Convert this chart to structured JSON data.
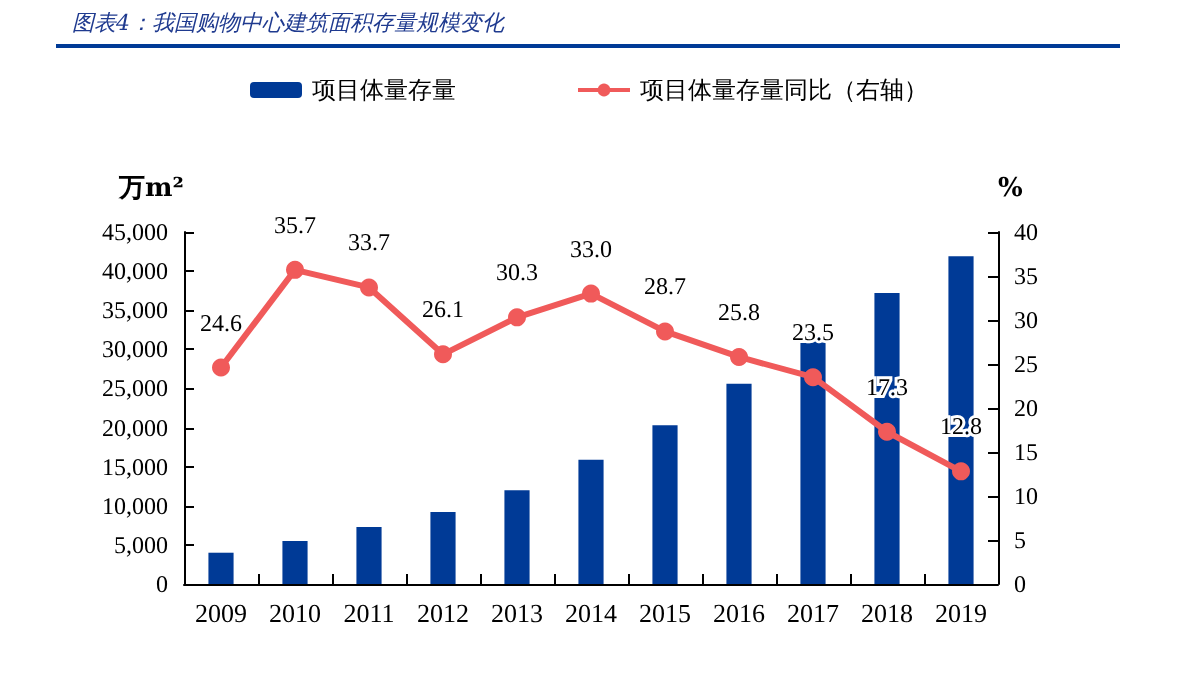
{
  "chart_data": {
    "type": "bar",
    "title": "图表4：我国购物中心建筑面积存量规模变化",
    "ylabel": "万m²",
    "y2label": "%",
    "categories": [
      "2009",
      "2010",
      "2011",
      "2012",
      "2013",
      "2014",
      "2015",
      "2016",
      "2017",
      "2018",
      "2019"
    ],
    "series": [
      {
        "name": "项目体量存量",
        "color": "#003a96",
        "values": [
          4000,
          5500,
          7300,
          9200,
          12000,
          15900,
          20300,
          25600,
          31700,
          37200,
          41900
        ]
      },
      {
        "name": "项目体量存量同比（右轴）",
        "type": "line",
        "axis": "y2",
        "color": "#f05a5a",
        "marker": "circle",
        "data_labels": true,
        "values": [
          24.6,
          35.7,
          33.7,
          26.1,
          30.3,
          33.0,
          28.7,
          25.8,
          23.5,
          17.3,
          12.8
        ],
        "value_labels": [
          "24.6",
          "35.7",
          "33.7",
          "26.1",
          "30.3",
          "33.0",
          "28.7",
          "25.8",
          "23.5",
          "17.3",
          "12.8"
        ]
      }
    ],
    "ylim": [
      0,
      45000
    ],
    "yticks": [
      {
        "value": 0,
        "label": "0"
      },
      {
        "value": 5000,
        "label": "5,000"
      },
      {
        "value": 10000,
        "label": "10,000"
      },
      {
        "value": 15000,
        "label": "15,000"
      },
      {
        "value": 20000,
        "label": "20,000"
      },
      {
        "value": 25000,
        "label": "25,000"
      },
      {
        "value": 30000,
        "label": "30,000"
      },
      {
        "value": 35000,
        "label": "35,000"
      },
      {
        "value": 40000,
        "label": "40,000"
      },
      {
        "value": 45000,
        "label": "45,000"
      }
    ],
    "y2lim": [
      0,
      40
    ],
    "y2ticks": [
      0,
      5,
      10,
      15,
      20,
      25,
      30,
      35,
      40
    ],
    "grid": false,
    "legend": "top"
  }
}
